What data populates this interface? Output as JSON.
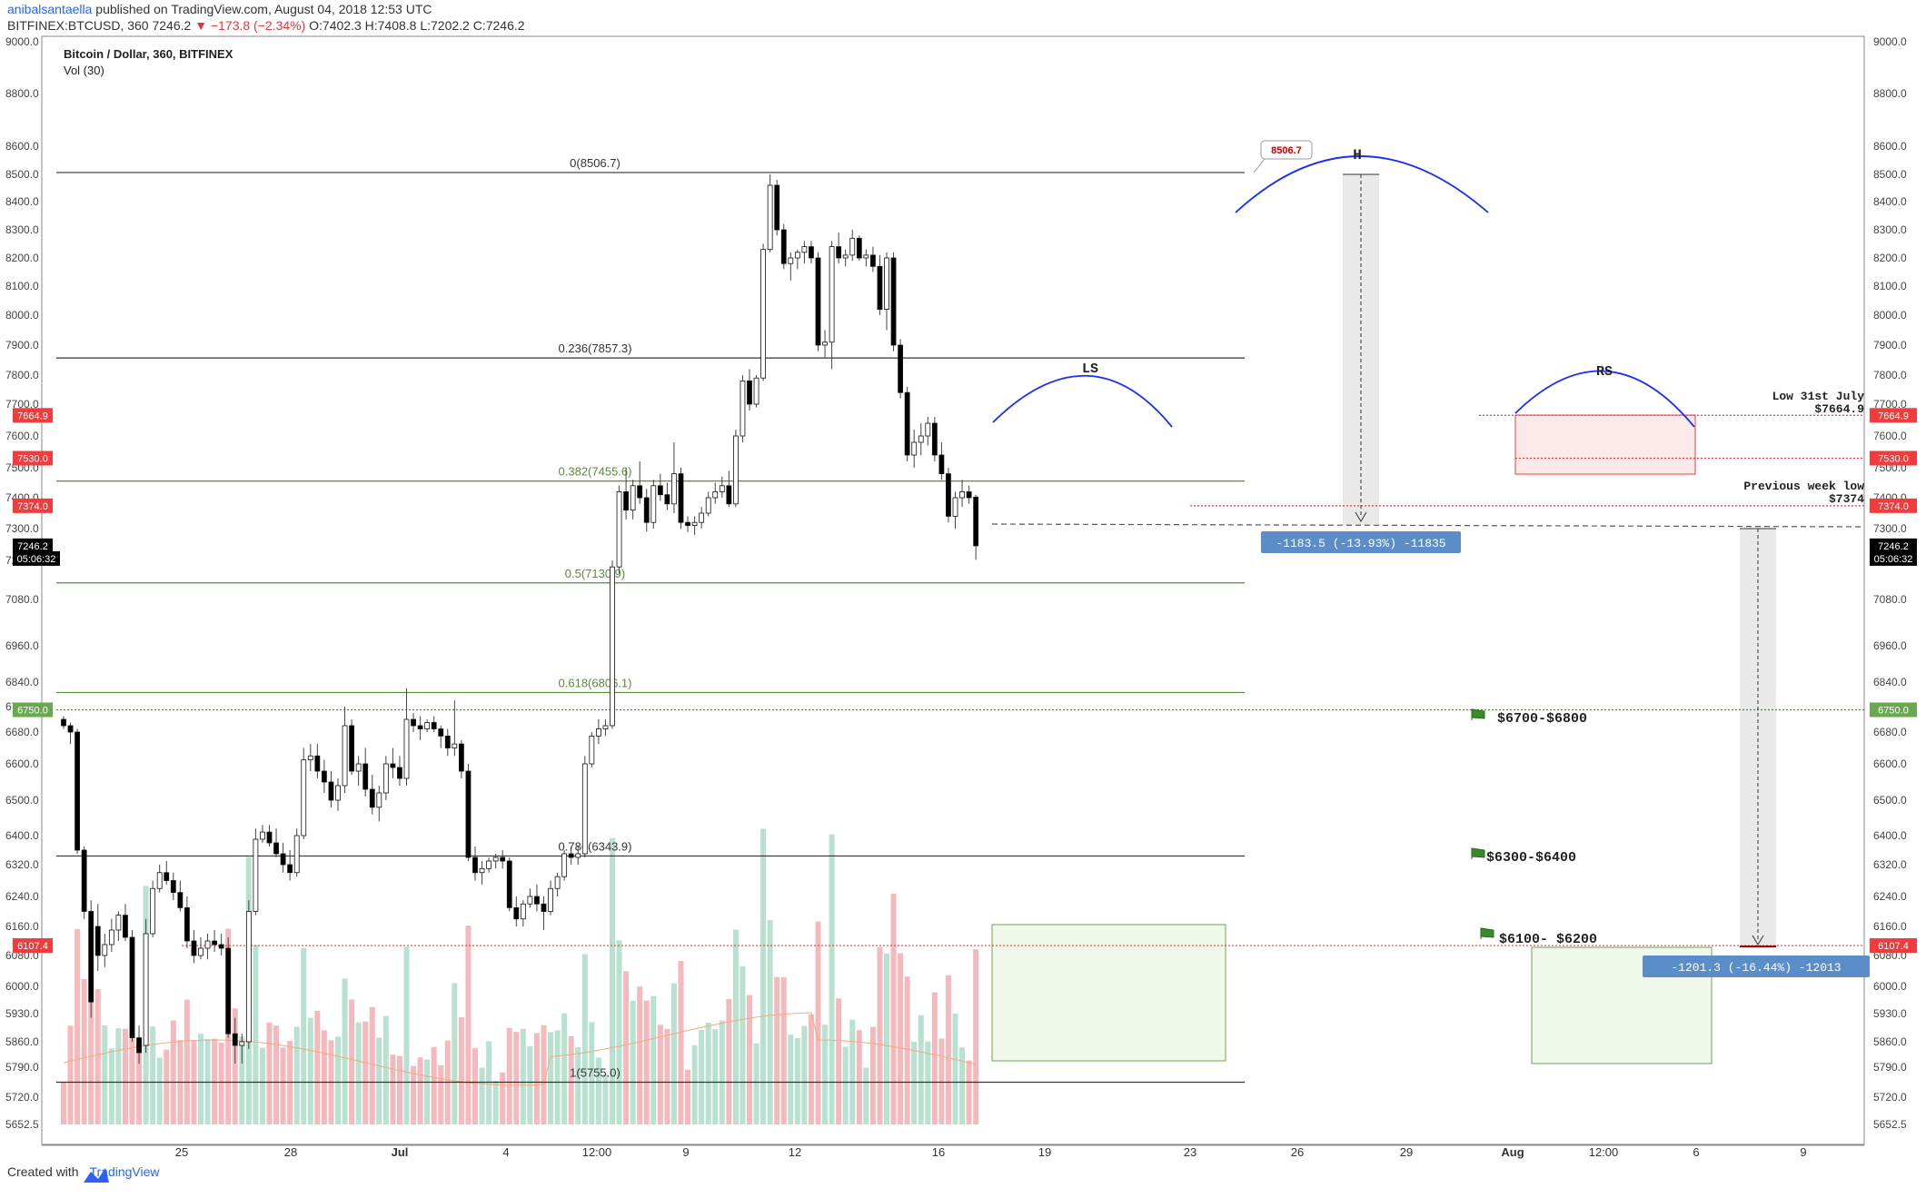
{
  "header": {
    "author": "anibalsantaella",
    "published": "published on TradingView.com, August 04, 2018 12:53 UTC",
    "symbol": "BITFINEX:BTCUSD, 360",
    "price": "7246.2",
    "change": "▼ −173.8 (−2.34%)",
    "ohlc": "O:7402.3 H:7408.8 L:7202.2 C:7246.2"
  },
  "legend": {
    "title": "Bitcoin / Dollar, 360, BITFINEX",
    "volume": "Vol (30)"
  },
  "footer": {
    "created": "Created with",
    "brand": "TradingView"
  },
  "colors": {
    "up": "#ffffff",
    "down": "#000000",
    "wick": "#444444",
    "vol_up": "#b9e1cf",
    "vol_down": "#f5b9bd",
    "vol_ma": "#f2a97f",
    "fib_black": "#333333",
    "fib_green": "#5a8a3a",
    "red_line": "#ef3b3b",
    "arc": "#1a2bff",
    "measure_blue": "#5b8ec9"
  },
  "chart_data": {
    "type": "candlestick",
    "title": "Bitcoin / Dollar, 360, BITFINEX",
    "y_ticks": [
      "5652.5",
      "5720.0",
      "5790.0",
      "5860.0",
      "5930.0",
      "6000.0",
      "6080.0",
      "6160.0",
      "6240.0",
      "6320.0",
      "6400.0",
      "6500.0",
      "6600.0",
      "6680.0",
      "6760.0",
      "6840.0",
      "6960.0",
      "7080.0",
      "7200.0",
      "7300.0",
      "7400.0",
      "7500.0",
      "7600.0",
      "7700.0",
      "7800.0",
      "7900.0",
      "8000.0",
      "8100.0",
      "8200.0",
      "8300.0",
      "8400.0",
      "8500.0",
      "8600.0",
      "8800.0",
      "9000.0"
    ],
    "x_ticks": [
      "25",
      "28",
      "Jul",
      "4",
      "12:00",
      "9",
      "12",
      "16",
      "19",
      "23",
      "26",
      "29",
      "Aug",
      "12:00",
      "6",
      "9"
    ],
    "candles_ohlc": [
      [
        6720,
        6730,
        6690,
        6700
      ],
      [
        6700,
        6710,
        6650,
        6680
      ],
      [
        6680,
        6690,
        6350,
        6360
      ],
      [
        6360,
        6370,
        6180,
        6200
      ],
      [
        6200,
        6230,
        5920,
        5960
      ],
      [
        6160,
        6220,
        6040,
        6080
      ],
      [
        6080,
        6140,
        6050,
        6110
      ],
      [
        6110,
        6180,
        6090,
        6150
      ],
      [
        6150,
        6200,
        6120,
        6190
      ],
      [
        6190,
        6220,
        6120,
        6130
      ],
      [
        6130,
        6150,
        5860,
        5870
      ],
      [
        5870,
        5900,
        5800,
        5830
      ],
      [
        5850,
        6180,
        5830,
        6140
      ],
      [
        6140,
        6280,
        6130,
        6260
      ],
      [
        6260,
        6320,
        6250,
        6300
      ],
      [
        6300,
        6330,
        6270,
        6280
      ],
      [
        6280,
        6300,
        6230,
        6250
      ],
      [
        6250,
        6280,
        6200,
        6210
      ],
      [
        6210,
        6240,
        6100,
        6120
      ],
      [
        6120,
        6150,
        6060,
        6080
      ],
      [
        6080,
        6130,
        6070,
        6100
      ],
      [
        6100,
        6140,
        6070,
        6120
      ],
      [
        6120,
        6150,
        6090,
        6110
      ],
      [
        6110,
        6140,
        6080,
        6100
      ],
      [
        6100,
        6130,
        5870,
        5880
      ],
      [
        5880,
        5920,
        5800,
        5850
      ],
      [
        5850,
        5880,
        5800,
        5860
      ],
      [
        5860,
        6230,
        5840,
        6200
      ],
      [
        6200,
        6420,
        6190,
        6390
      ],
      [
        6390,
        6430,
        6380,
        6410
      ],
      [
        6410,
        6430,
        6370,
        6380
      ],
      [
        6380,
        6420,
        6340,
        6350
      ],
      [
        6350,
        6380,
        6300,
        6320
      ],
      [
        6320,
        6360,
        6280,
        6300
      ],
      [
        6300,
        6420,
        6290,
        6400
      ],
      [
        6400,
        6640,
        6390,
        6610
      ],
      [
        6610,
        6650,
        6580,
        6620
      ],
      [
        6620,
        6650,
        6560,
        6580
      ],
      [
        6580,
        6610,
        6520,
        6550
      ],
      [
        6550,
        6580,
        6480,
        6500
      ],
      [
        6500,
        6560,
        6470,
        6540
      ],
      [
        6540,
        6760,
        6520,
        6700
      ],
      [
        6700,
        6720,
        6570,
        6580
      ],
      [
        6580,
        6620,
        6540,
        6600
      ],
      [
        6600,
        6640,
        6510,
        6530
      ],
      [
        6530,
        6570,
        6460,
        6480
      ],
      [
        6480,
        6540,
        6440,
        6520
      ],
      [
        6520,
        6620,
        6500,
        6600
      ],
      [
        6600,
        6640,
        6560,
        6590
      ],
      [
        6590,
        6620,
        6540,
        6560
      ],
      [
        6560,
        6820,
        6540,
        6720
      ],
      [
        6720,
        6740,
        6680,
        6700
      ],
      [
        6700,
        6730,
        6660,
        6690
      ],
      [
        6690,
        6720,
        6680,
        6710
      ],
      [
        6710,
        6730,
        6680,
        6690
      ],
      [
        6690,
        6700,
        6640,
        6670
      ],
      [
        6670,
        6690,
        6620,
        6640
      ],
      [
        6640,
        6780,
        6620,
        6650
      ],
      [
        6650,
        6660,
        6560,
        6580
      ],
      [
        6580,
        6600,
        6330,
        6340
      ],
      [
        6340,
        6370,
        6280,
        6300
      ],
      [
        6300,
        6330,
        6270,
        6310
      ],
      [
        6310,
        6340,
        6300,
        6330
      ],
      [
        6330,
        6350,
        6310,
        6340
      ],
      [
        6340,
        6360,
        6310,
        6330
      ],
      [
        6330,
        6340,
        6200,
        6210
      ],
      [
        6210,
        6240,
        6160,
        6180
      ],
      [
        6180,
        6230,
        6160,
        6220
      ],
      [
        6220,
        6260,
        6210,
        6240
      ],
      [
        6240,
        6270,
        6200,
        6220
      ],
      [
        6220,
        6240,
        6150,
        6200
      ],
      [
        6200,
        6280,
        6190,
        6260
      ],
      [
        6260,
        6300,
        6240,
        6290
      ],
      [
        6290,
        6360,
        6280,
        6350
      ],
      [
        6350,
        6370,
        6320,
        6340
      ],
      [
        6340,
        6370,
        6320,
        6350
      ],
      [
        6350,
        6620,
        6340,
        6600
      ],
      [
        6600,
        6680,
        6590,
        6670
      ],
      [
        6670,
        6720,
        6650,
        6690
      ],
      [
        6690,
        6720,
        6670,
        6700
      ],
      [
        6700,
        7200,
        6690,
        7180
      ],
      [
        7180,
        7440,
        7160,
        7420
      ],
      [
        7420,
        7500,
        7330,
        7360
      ],
      [
        7360,
        7460,
        7330,
        7440
      ],
      [
        7440,
        7520,
        7380,
        7400
      ],
      [
        7400,
        7430,
        7290,
        7320
      ],
      [
        7320,
        7460,
        7300,
        7440
      ],
      [
        7440,
        7480,
        7390,
        7410
      ],
      [
        7410,
        7450,
        7360,
        7380
      ],
      [
        7380,
        7580,
        7350,
        7480
      ],
      [
        7480,
        7500,
        7300,
        7320
      ],
      [
        7320,
        7340,
        7290,
        7310
      ],
      [
        7310,
        7340,
        7280,
        7320
      ],
      [
        7320,
        7370,
        7300,
        7350
      ],
      [
        7350,
        7420,
        7340,
        7400
      ],
      [
        7400,
        7450,
        7380,
        7420
      ],
      [
        7420,
        7470,
        7400,
        7440
      ],
      [
        7440,
        7490,
        7370,
        7380
      ],
      [
        7380,
        7620,
        7370,
        7600
      ],
      [
        7600,
        7800,
        7580,
        7780
      ],
      [
        7780,
        7820,
        7680,
        7700
      ],
      [
        7700,
        7800,
        7690,
        7790
      ],
      [
        7790,
        8250,
        7780,
        8230
      ],
      [
        8230,
        8500,
        8220,
        8460
      ],
      [
        8460,
        8480,
        8280,
        8300
      ],
      [
        8300,
        8320,
        8160,
        8180
      ],
      [
        8180,
        8220,
        8120,
        8200
      ],
      [
        8200,
        8230,
        8160,
        8220
      ],
      [
        8220,
        8260,
        8180,
        8240
      ],
      [
        8240,
        8260,
        8180,
        8200
      ],
      [
        8200,
        8220,
        7880,
        7900
      ],
      [
        7900,
        7950,
        7860,
        7910
      ],
      [
        7910,
        8260,
        7820,
        8240
      ],
      [
        8240,
        8290,
        8180,
        8200
      ],
      [
        8200,
        8230,
        8170,
        8210
      ],
      [
        8210,
        8300,
        8190,
        8270
      ],
      [
        8270,
        8280,
        8190,
        8200
      ],
      [
        8200,
        8230,
        8170,
        8210
      ],
      [
        8210,
        8240,
        8150,
        8170
      ],
      [
        8170,
        8210,
        8000,
        8020
      ],
      [
        8020,
        8220,
        7950,
        8200
      ],
      [
        8200,
        8220,
        7880,
        7900
      ],
      [
        7900,
        7920,
        7720,
        7740
      ],
      [
        7740,
        7760,
        7520,
        7540
      ],
      [
        7540,
        7620,
        7500,
        7580
      ],
      [
        7580,
        7640,
        7540,
        7600
      ],
      [
        7600,
        7660,
        7570,
        7640
      ],
      [
        7640,
        7660,
        7520,
        7540
      ],
      [
        7540,
        7580,
        7460,
        7480
      ],
      [
        7480,
        7500,
        7320,
        7340
      ],
      [
        7340,
        7420,
        7300,
        7400
      ],
      [
        7400,
        7460,
        7370,
        7420
      ],
      [
        7420,
        7440,
        7380,
        7400
      ],
      [
        7402,
        7409,
        7202,
        7246
      ]
    ],
    "volume_ma_note": "Vol (30)",
    "fib_levels": [
      {
        "label": "0(8506.7)",
        "value": 8506.7,
        "color": "black"
      },
      {
        "label": "0.236(7857.3)",
        "value": 7857.3,
        "color": "black"
      },
      {
        "label": "0.382(7455.6)",
        "value": 7455.6,
        "color": "green"
      },
      {
        "label": "0.5(7130.9)",
        "value": 7130.9,
        "color": "green"
      },
      {
        "label": "0.618(6806.1)",
        "value": 6806.1,
        "color": "green"
      },
      {
        "label": "0.786(6343.9)",
        "value": 6343.9,
        "color": "black"
      },
      {
        "label": "1(5755.0)",
        "value": 5755.0,
        "color": "black"
      }
    ],
    "price_labels": [
      {
        "text": "7664.9",
        "value": 7664.9,
        "bg": "#f03c3c"
      },
      {
        "text": "7530.0",
        "value": 7530.0,
        "bg": "#f03c3c"
      },
      {
        "text": "7374.0",
        "value": 7374.0,
        "bg": "#f03c3c"
      },
      {
        "text": "7246.2",
        "value": 7246.2,
        "bg": "#000000"
      },
      {
        "text": "05:06:32",
        "value": 7206,
        "bg": "#000000"
      },
      {
        "text": "6750.0",
        "value": 6750.0,
        "bg": "#6aa84f"
      },
      {
        "text": "6107.4",
        "value": 6107.4,
        "bg": "#f03c3c"
      }
    ],
    "annotations": {
      "peak": "8506.7",
      "head": "H",
      "left_shoulder": "LS",
      "right_shoulder": "RS",
      "low_31_july_1": "Low 31st July",
      "low_31_july_2": "$7664.9",
      "prev_week_1": "Previous week low",
      "prev_week_2": "$7374",
      "measure_1": "-1183.5 (-13.93%) -11835",
      "measure_2": "-1201.3 (-16.44%) -12013",
      "zone_1": "$6700-$6800",
      "zone_2": "$6300-$6400",
      "zone_3": "$6100- $6200"
    }
  }
}
